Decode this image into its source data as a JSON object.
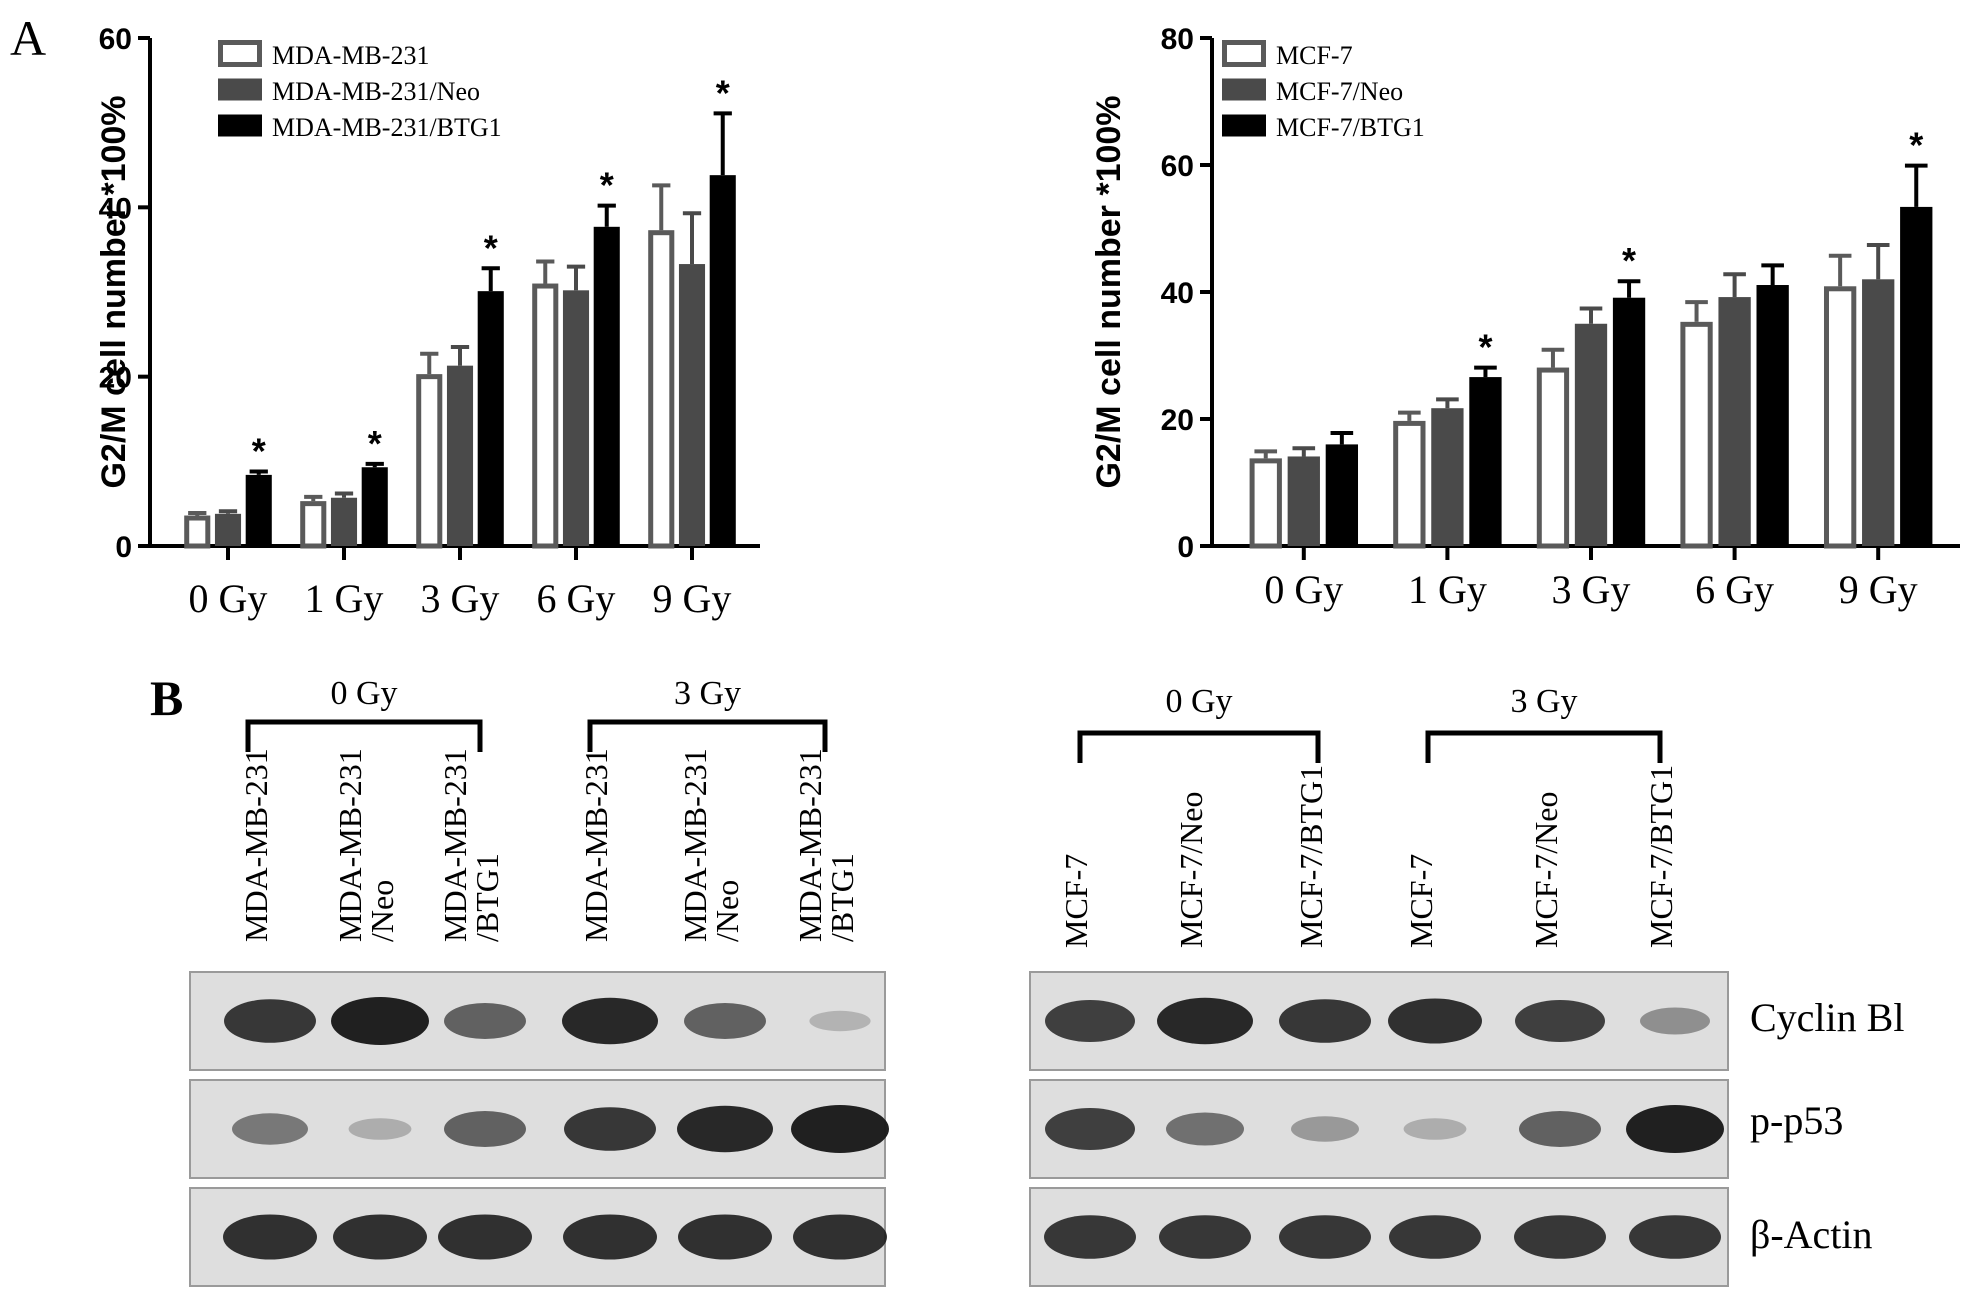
{
  "panels": {
    "a_label": "A",
    "b_label": "B"
  },
  "colors": {
    "empty": "#ffffff",
    "neo": "#4a4a4a",
    "btg1": "#000000",
    "axis": "#000000",
    "blot_bg": "#dedede",
    "band": "#1a1a1a"
  },
  "chart_data": [
    {
      "type": "bar",
      "ylabel": "G2/M cell number *100%",
      "ylim": [
        0,
        60
      ],
      "yticks": [
        0,
        20,
        40,
        60
      ],
      "categories": [
        "0 Gy",
        "1 Gy",
        "3 Gy",
        "6 Gy",
        "9 Gy"
      ],
      "legend_position": "top-left",
      "series": [
        {
          "name": "MDA-MB-231",
          "style": "empty",
          "values": [
            3.6,
            5.3,
            20.3,
            31.0,
            37.3
          ],
          "errors": [
            0.3,
            0.5,
            2.4,
            2.6,
            5.3
          ]
        },
        {
          "name": "MDA-MB-231/Neo",
          "style": "neo",
          "values": [
            3.8,
            5.7,
            21.3,
            30.2,
            33.3
          ],
          "errors": [
            0.3,
            0.5,
            2.2,
            2.8,
            6.0
          ]
        },
        {
          "name": "MDA-MB-231/BTG1",
          "style": "btg1",
          "values": [
            8.4,
            9.3,
            30.1,
            37.7,
            43.8
          ],
          "errors": [
            0.4,
            0.4,
            2.7,
            2.5,
            7.3
          ]
        }
      ],
      "significance": [
        {
          "category": 0,
          "series": 2,
          "mark": "*"
        },
        {
          "category": 1,
          "series": 2,
          "mark": "*"
        },
        {
          "category": 2,
          "series": 2,
          "mark": "*"
        },
        {
          "category": 3,
          "series": 2,
          "mark": "*"
        },
        {
          "category": 4,
          "series": 2,
          "mark": "*"
        }
      ]
    },
    {
      "type": "bar",
      "ylabel": "G2/M cell number *100%",
      "ylim": [
        0,
        80
      ],
      "yticks": [
        0,
        20,
        40,
        60,
        80
      ],
      "categories": [
        "0 Gy",
        "1 Gy",
        "3 Gy",
        "6 Gy",
        "9 Gy"
      ],
      "legend_position": "top-left",
      "series": [
        {
          "name": "MCF-7",
          "style": "empty",
          "values": [
            13.8,
            19.7,
            28.1,
            35.3,
            40.9
          ],
          "errors": [
            1.1,
            1.3,
            2.8,
            3.1,
            4.8
          ]
        },
        {
          "name": "MCF-7/Neo",
          "style": "neo",
          "values": [
            14.1,
            21.7,
            35.0,
            39.2,
            42.0
          ],
          "errors": [
            1.3,
            1.4,
            2.4,
            3.6,
            5.4
          ]
        },
        {
          "name": "MCF-7/BTG1",
          "style": "btg1",
          "values": [
            16.0,
            26.6,
            39.1,
            41.1,
            53.4
          ],
          "errors": [
            1.8,
            1.5,
            2.6,
            3.1,
            6.5
          ]
        }
      ],
      "significance": [
        {
          "category": 1,
          "series": 2,
          "mark": "*"
        },
        {
          "category": 2,
          "series": 2,
          "mark": "*"
        },
        {
          "category": 4,
          "series": 2,
          "mark": "*"
        }
      ]
    }
  ],
  "blots": [
    {
      "group_labels": [
        "0 Gy",
        "3 Gy"
      ],
      "lanes": [
        [
          "MDA-MB-231"
        ],
        [
          "MDA-MB-231",
          "/Neo"
        ],
        [
          "MDA-MB-231",
          "/BTG1"
        ],
        [
          "MDA-MB-231"
        ],
        [
          "MDA-MB-231",
          "/Neo"
        ],
        [
          "MDA-MB-231",
          "/BTG1"
        ]
      ],
      "rows": [
        {
          "protein": "Cyclin B1",
          "intensity": [
            0.85,
            1.0,
            0.6,
            0.95,
            0.6,
            0.08
          ]
        },
        {
          "protein": "p-p53",
          "intensity": [
            0.45,
            0.12,
            0.6,
            0.85,
            0.95,
            1.0
          ]
        },
        {
          "protein": "β-Actin",
          "intensity": [
            0.9,
            0.9,
            0.9,
            0.9,
            0.9,
            0.9
          ]
        }
      ]
    },
    {
      "group_labels": [
        "0 Gy",
        "3 Gy"
      ],
      "lanes": [
        [
          "MCF-7"
        ],
        [
          "MCF-7/Neo"
        ],
        [
          "MCF-7/BTG1"
        ],
        [
          "MCF-7"
        ],
        [
          "MCF-7/Neo"
        ],
        [
          "MCF-7/BTG1"
        ]
      ],
      "rows": [
        {
          "protein": "Cyclin B1",
          "intensity": [
            0.8,
            0.95,
            0.85,
            0.9,
            0.8,
            0.3
          ]
        },
        {
          "protein": "p-p53",
          "intensity": [
            0.8,
            0.5,
            0.25,
            0.12,
            0.6,
            1.0
          ]
        },
        {
          "protein": "β-Actin",
          "intensity": [
            0.85,
            0.85,
            0.85,
            0.85,
            0.85,
            0.85
          ]
        }
      ]
    }
  ],
  "row_labels": [
    "Cyclin Bl",
    "p-p53",
    "β-Actin"
  ],
  "significance_mark": "*"
}
